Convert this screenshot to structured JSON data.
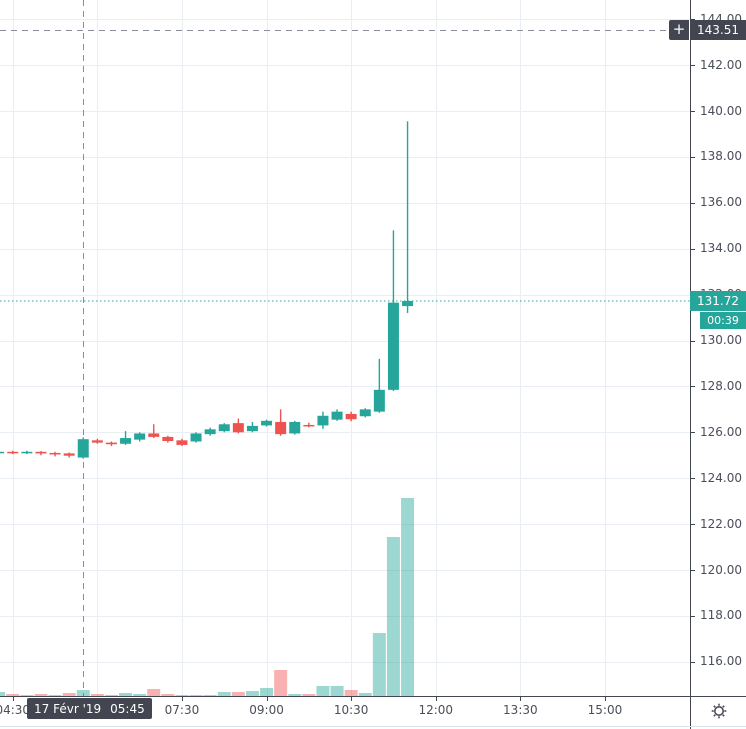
{
  "colors": {
    "up": "#26a69a",
    "down": "#ef5350",
    "volume_up": "rgba(38,166,154,0.45)",
    "volume_down": "rgba(239,83,80,0.45)",
    "grid": "#e8eef4",
    "crosshair": "#888e9b",
    "crosshair_label_bg": "#434651",
    "last_price_label_bg": "#26a69a",
    "axis_text": "#4a4e59",
    "axis_line": "#42464e",
    "pane_separator": "#dce5ee",
    "background": "#ffffff"
  },
  "price_axis": {
    "labels": [
      "144.00",
      "142.00",
      "140.00",
      "138.00",
      "136.00",
      "134.00",
      "132.00",
      "130.00",
      "128.00",
      "126.00",
      "124.00",
      "122.00",
      "120.00",
      "118.00",
      "116.00"
    ]
  },
  "time_axis": {
    "labels": [
      "04:30",
      "07:30",
      "09:00",
      "10:30",
      "12:00",
      "13:30",
      "15:00"
    ],
    "settings_icon": "gear-icon"
  },
  "crosshair": {
    "price_label": "143.51",
    "date_label": "17 Févr '19",
    "time_label": "05:45",
    "plus_label": "+"
  },
  "last_price": {
    "price_label": "131.72",
    "countdown_label": "00:39"
  },
  "chart_data": {
    "type": "candlestick",
    "interval": "15m",
    "session_date": "17 Févr '19",
    "ylim": [
      114.5,
      144.8
    ],
    "grid": true,
    "price_gridline_step": 2.0,
    "last_price": 131.72,
    "crosshair_price": 143.51,
    "crosshair_time": "05:45",
    "volume_units": "relative",
    "candles": [
      {
        "time": "04:15",
        "open": 125.12,
        "high": 125.18,
        "low": 125.05,
        "close": 125.15,
        "volume": 4
      },
      {
        "time": "04:30",
        "open": 125.15,
        "high": 125.2,
        "low": 125.05,
        "close": 125.1,
        "volume": 2
      },
      {
        "time": "04:45",
        "open": 125.1,
        "high": 125.2,
        "low": 125.05,
        "close": 125.15,
        "volume": 1
      },
      {
        "time": "05:00",
        "open": 125.15,
        "high": 125.18,
        "low": 125.0,
        "close": 125.08,
        "volume": 2
      },
      {
        "time": "05:15",
        "open": 125.1,
        "high": 125.15,
        "low": 124.95,
        "close": 125.05,
        "volume": 1
      },
      {
        "time": "05:30",
        "open": 125.08,
        "high": 125.12,
        "low": 124.9,
        "close": 124.98,
        "volume": 3
      },
      {
        "time": "05:45",
        "open": 124.9,
        "high": 125.78,
        "low": 124.85,
        "close": 125.7,
        "volume": 6
      },
      {
        "time": "06:00",
        "open": 125.65,
        "high": 125.72,
        "low": 125.5,
        "close": 125.55,
        "volume": 2
      },
      {
        "time": "06:15",
        "open": 125.55,
        "high": 125.6,
        "low": 125.4,
        "close": 125.48,
        "volume": 1
      },
      {
        "time": "06:30",
        "open": 125.5,
        "high": 126.05,
        "low": 125.45,
        "close": 125.75,
        "volume": 3
      },
      {
        "time": "06:45",
        "open": 125.68,
        "high": 126.0,
        "low": 125.6,
        "close": 125.95,
        "volume": 2
      },
      {
        "time": "07:00",
        "open": 125.95,
        "high": 126.35,
        "low": 125.75,
        "close": 125.8,
        "volume": 7
      },
      {
        "time": "07:15",
        "open": 125.8,
        "high": 125.85,
        "low": 125.55,
        "close": 125.62,
        "volume": 2
      },
      {
        "time": "07:30",
        "open": 125.65,
        "high": 125.72,
        "low": 125.4,
        "close": 125.45,
        "volume": 1
      },
      {
        "time": "07:45",
        "open": 125.6,
        "high": 126.0,
        "low": 125.55,
        "close": 125.95,
        "volume": 1
      },
      {
        "time": "08:00",
        "open": 125.92,
        "high": 126.2,
        "low": 125.85,
        "close": 126.13,
        "volume": 1
      },
      {
        "time": "08:15",
        "open": 126.05,
        "high": 126.4,
        "low": 126.0,
        "close": 126.35,
        "volume": 4
      },
      {
        "time": "08:30",
        "open": 126.4,
        "high": 126.6,
        "low": 125.95,
        "close": 126.0,
        "volume": 4
      },
      {
        "time": "08:45",
        "open": 126.05,
        "high": 126.45,
        "low": 126.0,
        "close": 126.28,
        "volume": 5
      },
      {
        "time": "09:00",
        "open": 126.3,
        "high": 126.55,
        "low": 126.25,
        "close": 126.5,
        "volume": 8
      },
      {
        "time": "09:15",
        "open": 126.45,
        "high": 127.0,
        "low": 125.85,
        "close": 125.92,
        "volume": 26
      },
      {
        "time": "09:30",
        "open": 125.95,
        "high": 126.5,
        "low": 125.9,
        "close": 126.45,
        "volume": 2
      },
      {
        "time": "09:45",
        "open": 126.32,
        "high": 126.42,
        "low": 126.22,
        "close": 126.26,
        "volume": 2
      },
      {
        "time": "10:00",
        "open": 126.3,
        "high": 126.9,
        "low": 126.15,
        "close": 126.72,
        "volume": 10
      },
      {
        "time": "10:15",
        "open": 126.55,
        "high": 127.0,
        "low": 126.5,
        "close": 126.9,
        "volume": 10
      },
      {
        "time": "10:30",
        "open": 126.8,
        "high": 126.9,
        "low": 126.48,
        "close": 126.57,
        "volume": 6
      },
      {
        "time": "10:45",
        "open": 126.7,
        "high": 127.05,
        "low": 126.65,
        "close": 127.0,
        "volume": 3
      },
      {
        "time": "11:00",
        "open": 126.9,
        "high": 129.2,
        "low": 126.85,
        "close": 127.85,
        "volume": 63
      },
      {
        "time": "11:15",
        "open": 127.85,
        "high": 134.8,
        "low": 127.8,
        "close": 131.65,
        "volume": 159
      },
      {
        "time": "11:30",
        "open": 131.5,
        "high": 139.55,
        "low": 131.2,
        "close": 131.72,
        "volume": 198
      }
    ]
  }
}
